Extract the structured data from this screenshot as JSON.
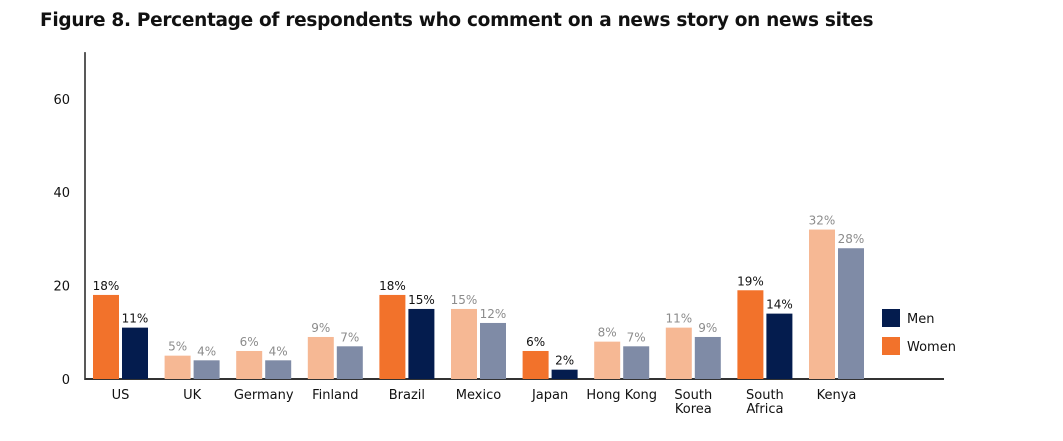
{
  "title": "Figure 8. Percentage of respondents who comment on a news story on news sites",
  "chart_data": {
    "type": "bar",
    "title": "Figure 8. Percentage of respondents who comment on a news story on news sites",
    "xlabel": "",
    "ylabel": "",
    "ylim": [
      0,
      70
    ],
    "yticks": [
      0,
      20,
      40,
      60
    ],
    "grid": false,
    "legend_position": "right",
    "categories": [
      [
        "US"
      ],
      [
        "UK"
      ],
      [
        "Germany"
      ],
      [
        "Finland"
      ],
      [
        "Brazil"
      ],
      [
        "Mexico"
      ],
      [
        "Japan"
      ],
      [
        "Hong Kong"
      ],
      [
        "South",
        "Korea"
      ],
      [
        "South",
        "Africa"
      ],
      [
        "Kenya"
      ]
    ],
    "highlighted": [
      true,
      false,
      false,
      false,
      true,
      false,
      true,
      false,
      false,
      true,
      false
    ],
    "series": [
      {
        "name": "Women",
        "values": [
          18,
          5,
          6,
          9,
          18,
          15,
          6,
          8,
          11,
          19,
          32
        ],
        "color": "#F2722B",
        "muted_color": "#F6B894"
      },
      {
        "name": "Men",
        "values": [
          11,
          4,
          4,
          7,
          15,
          12,
          2,
          7,
          9,
          14,
          28
        ],
        "color": "#041C4E",
        "muted_color": "#7F8BA6"
      }
    ],
    "legend": [
      {
        "name": "Men",
        "color": "#041C4E"
      },
      {
        "name": "Women",
        "color": "#F2722B"
      }
    ],
    "label_colors": {
      "highlighted": "#111111",
      "muted": "#8C8C8C"
    }
  }
}
